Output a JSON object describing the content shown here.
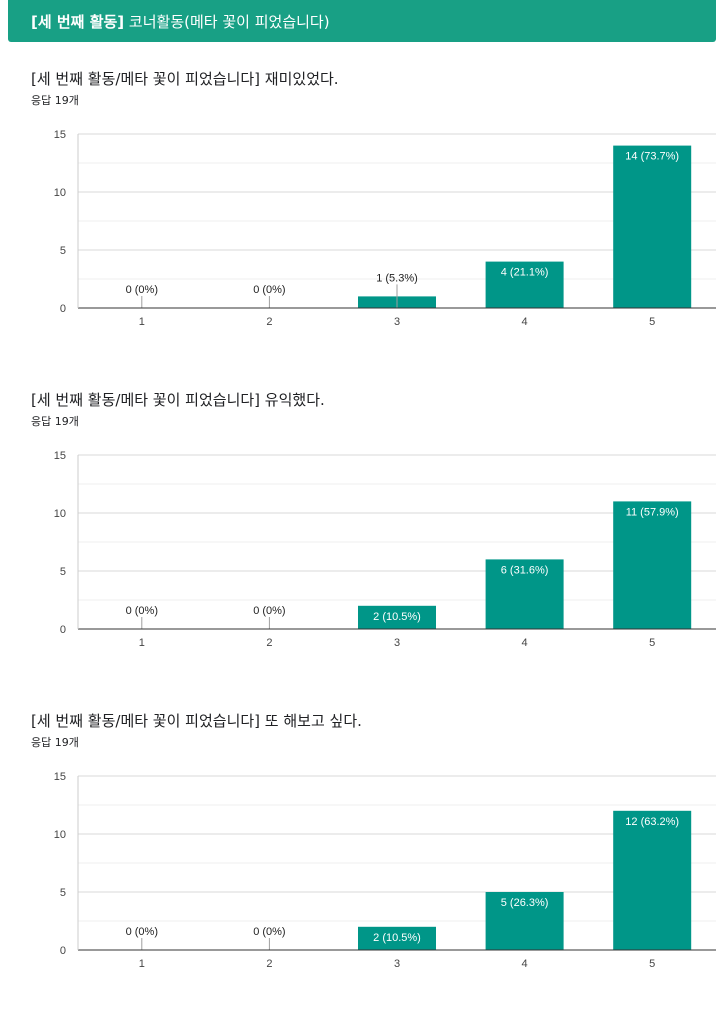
{
  "header": {
    "title_bold": "[세 번째 활동]",
    "title_rest": " 코너활동(메타 꽃이 피었습니다)",
    "bg_color": "#18a085"
  },
  "questions": [
    {
      "title": "[세 번째 활동/메타 꽃이 피었습니다] 재미있었다.",
      "count": "응답 19개"
    },
    {
      "title": "[세 번째 활동/메타 꽃이 피었습니다] 유익했다.",
      "count": "응답 19개"
    },
    {
      "title": "[세 번째 활동/메타 꽃이 피었습니다] 또 해보고 싶다.",
      "count": "응답 19개"
    }
  ],
  "chart_data": [
    {
      "type": "bar",
      "categories": [
        "1",
        "2",
        "3",
        "4",
        "5"
      ],
      "values": [
        0,
        0,
        1,
        4,
        14
      ],
      "data_labels": [
        "0 (0%)",
        "0 (0%)",
        "1 (5.3%)",
        "4 (21.1%)",
        "14 (73.7%)"
      ],
      "yticks": [
        0,
        5,
        10,
        15
      ],
      "ylim": [
        0,
        15
      ],
      "grid": true,
      "bar_color": "#009688"
    },
    {
      "type": "bar",
      "categories": [
        "1",
        "2",
        "3",
        "4",
        "5"
      ],
      "values": [
        0,
        0,
        2,
        6,
        11
      ],
      "data_labels": [
        "0 (0%)",
        "0 (0%)",
        "2 (10.5%)",
        "6 (31.6%)",
        "11 (57.9%)"
      ],
      "yticks": [
        0,
        5,
        10,
        15
      ],
      "ylim": [
        0,
        15
      ],
      "grid": true,
      "bar_color": "#009688"
    },
    {
      "type": "bar",
      "categories": [
        "1",
        "2",
        "3",
        "4",
        "5"
      ],
      "values": [
        0,
        0,
        2,
        5,
        12
      ],
      "data_labels": [
        "0 (0%)",
        "0 (0%)",
        "2 (10.5%)",
        "5 (26.3%)",
        "12 (63.2%)"
      ],
      "yticks": [
        0,
        5,
        10,
        15
      ],
      "ylim": [
        0,
        15
      ],
      "grid": true,
      "bar_color": "#009688"
    }
  ]
}
